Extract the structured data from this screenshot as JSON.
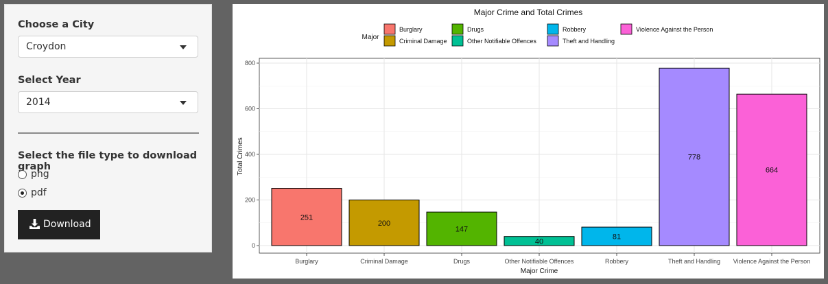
{
  "sidebar": {
    "city_label": "Choose a City",
    "city_value": "Croydon",
    "year_label": "Select Year",
    "year_value": "2014",
    "filetype_label": "Select the file type to download graph",
    "options": [
      {
        "label": "png",
        "selected": false
      },
      {
        "label": "pdf",
        "selected": true
      }
    ],
    "download_label": "Download",
    "download_icon": "download-icon"
  },
  "chart_data": {
    "type": "bar",
    "title": "Major Crime and Total Crimes",
    "xlabel": "Major Crime",
    "ylabel": "Total Crimes",
    "legend_title": "Major",
    "legend_position": "top",
    "grid": true,
    "ylim": [
      0,
      800
    ],
    "yticks": [
      0,
      200,
      400,
      600,
      800
    ],
    "categories": [
      "Burglary",
      "Criminal Damage",
      "Drugs",
      "Other Notifiable Offences",
      "Robbery",
      "Theft and Handling",
      "Violence Against the Person"
    ],
    "values": [
      251,
      200,
      147,
      40,
      81,
      778,
      664
    ],
    "colors": [
      "#F8766D",
      "#C49A00",
      "#53B400",
      "#00C094",
      "#00B6EB",
      "#A58AFF",
      "#FB61D7"
    ]
  }
}
